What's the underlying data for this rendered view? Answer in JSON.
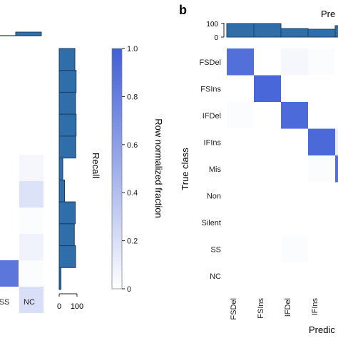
{
  "panel_labels": {
    "b": "b"
  },
  "chart_data": [
    {
      "type": "heatmap",
      "panel": "a (partial, cropped at left)",
      "x_categories_visible": [
        "SS",
        "NC"
      ],
      "visible_cells": [
        {
          "row": 0,
          "col": 1,
          "value": 0.05
        },
        {
          "row": 1,
          "col": 1,
          "value": 0.18
        },
        {
          "row": 2,
          "col": 1,
          "value": 0.02
        },
        {
          "row": 3,
          "col": 1,
          "value": 0.08
        },
        {
          "row": 4,
          "col": 0,
          "value": 0.85
        },
        {
          "row": 4,
          "col": 1,
          "value": 0.02
        },
        {
          "row": 5,
          "col": 1,
          "value": 0.2
        }
      ]
    },
    {
      "type": "bar",
      "orientation": "horizontal",
      "ylabel": "Recall",
      "xlim": [
        0,
        100
      ],
      "xticks": [
        "0",
        "100"
      ],
      "values": [
        88,
        95,
        92,
        95,
        93,
        20,
        30,
        90,
        85,
        92,
        10
      ]
    },
    {
      "type": "colorbar",
      "label": "Row normalized fraction",
      "range": [
        0,
        1
      ],
      "ticks": [
        "0",
        "0.2",
        "0.4",
        "0.6",
        "0.8",
        "1.0"
      ],
      "color_low": "#ffffff",
      "color_high": "#3f5fd6"
    },
    {
      "type": "heatmap",
      "panel": "b",
      "ylabel": "True class",
      "xlabel": "Predic",
      "top_title": "Pre",
      "rows": [
        "FSDel",
        "FSIns",
        "IFDel",
        "IFIns",
        "Mis",
        "Non",
        "Silent",
        "SS",
        "NC"
      ],
      "cols": [
        "FSDel",
        "FSIns",
        "IFDel",
        "IFIns"
      ],
      "cells": [
        [
          0.9,
          0.0,
          0.05,
          0.02
        ],
        [
          0.0,
          0.95,
          0.0,
          0.0
        ],
        [
          0.02,
          0.0,
          0.93,
          0.0
        ],
        [
          0.0,
          0.0,
          0.0,
          0.94
        ],
        [
          0.0,
          0.0,
          0.0,
          0.02
        ],
        [
          0.0,
          0.0,
          0.0,
          0.0
        ],
        [
          0.0,
          0.0,
          0.0,
          0.0
        ],
        [
          0.0,
          0.0,
          0.02,
          0.0
        ],
        [
          0.0,
          0.0,
          0.0,
          0.0
        ]
      ],
      "hist_ticks": [
        "0",
        "100"
      ],
      "hist_values": [
        95,
        95,
        60,
        55,
        80
      ]
    }
  ],
  "colors": {
    "bar_fill": "#2f6ea8",
    "bar_stroke": "#1a3f66",
    "cell_high": "#3f5fd6"
  }
}
